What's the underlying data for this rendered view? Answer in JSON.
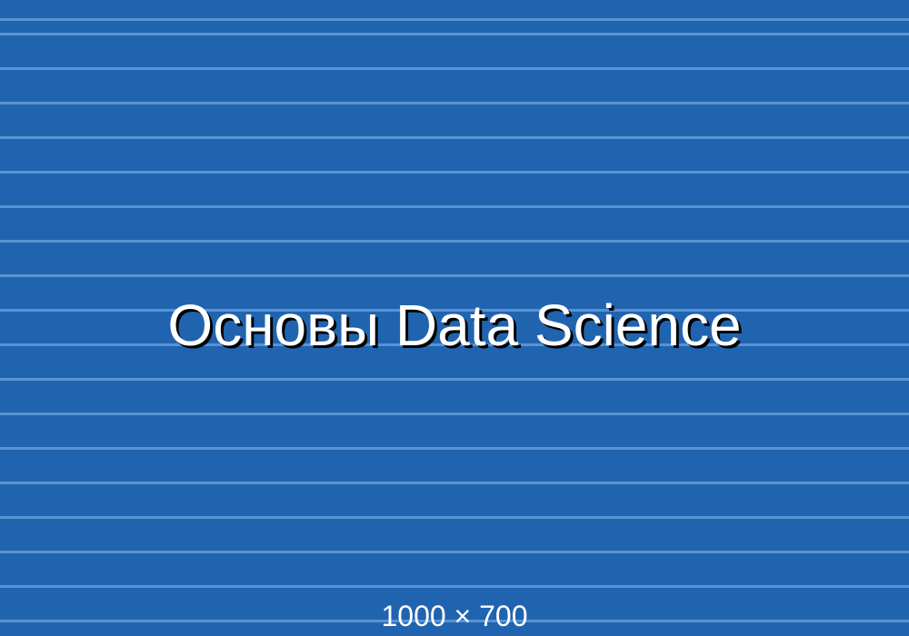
{
  "slide": {
    "title": "Основы Data Science",
    "dimensions_label": "1000 × 700",
    "colors": {
      "background": "#2064b0",
      "stripes": "#5a93d2",
      "title_text": "#ffffff",
      "title_shadow": "#000000"
    }
  }
}
